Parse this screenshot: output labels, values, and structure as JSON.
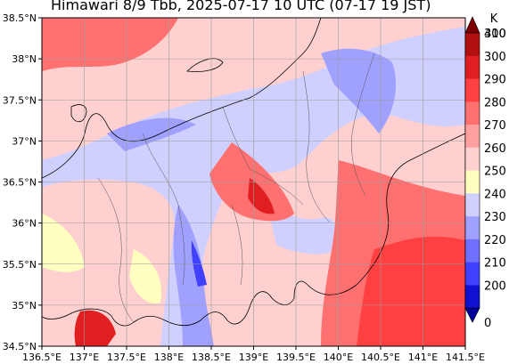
{
  "title": "Himawari 8/9 Tbb, 2025-07-17 10 UTC (07-17 19 JST)",
  "map": {
    "lon_labels": [
      "136.5°E",
      "137°E",
      "137.5°E",
      "138°E",
      "138.5°E",
      "139°E",
      "139.5°E",
      "140°E",
      "140.5°E",
      "141°E",
      "141.5°E"
    ],
    "lat_labels": [
      "38.5°N",
      "38°N",
      "37.5°N",
      "37°N",
      "36.5°N",
      "36°N",
      "35.5°N",
      "35°N",
      "34.5°N"
    ],
    "lon_range": [
      136.5,
      141.5
    ],
    "lat_range": [
      34.5,
      38.5
    ],
    "grid": true
  },
  "colorbar": {
    "unit": "K",
    "ticks": [
      "400",
      "310",
      "300",
      "290",
      "280",
      "270",
      "260",
      "250",
      "240",
      "230",
      "220",
      "210",
      "200",
      "0"
    ],
    "colors": [
      "#7f0000",
      "#b01010",
      "#e02020",
      "#ff4040",
      "#ff7070",
      "#ffa0a0",
      "#ffd0d0",
      "#ffffc0",
      "#d0d0ff",
      "#a0a0ff",
      "#7070ff",
      "#4040ff",
      "#1010d0",
      "#00009a"
    ]
  }
}
